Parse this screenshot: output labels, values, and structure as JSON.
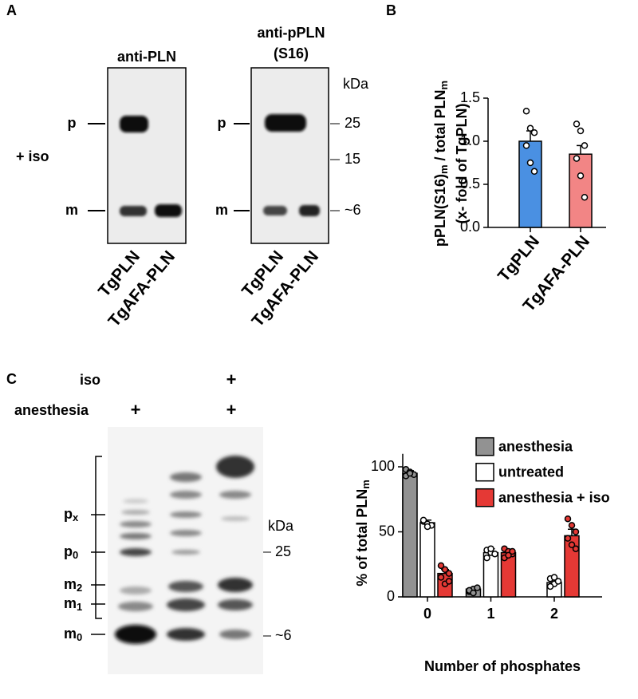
{
  "panel_labels": [
    "A",
    "B",
    "C"
  ],
  "blot_a": {
    "titles": [
      "anti-PLN",
      "anti-pPLN",
      "(S16)"
    ],
    "condition": "+ iso",
    "band_labels": [
      "p",
      "m"
    ],
    "kda": "kDa",
    "markers": [
      "25",
      "15",
      "~6"
    ],
    "lanes": [
      "TgPLN",
      "TgAFA-PLN"
    ]
  },
  "blot_c": {
    "rows": [
      "iso",
      "anesthesia"
    ],
    "plus": "+",
    "band_labels": [
      [
        "p",
        "x"
      ],
      [
        "p",
        "0"
      ],
      [
        "m",
        "2"
      ],
      [
        "m",
        "1"
      ],
      [
        "m",
        "0"
      ]
    ],
    "kda": "kDa",
    "markers": [
      "25",
      "~6"
    ]
  },
  "chart_data": [
    {
      "type": "bar",
      "y_label": [
        "pPLN(S16)",
        "m",
        " / total PLN",
        "m",
        "(x- fold of TgPLN)"
      ],
      "categories": [
        "TgPLN",
        "TgAFA-PLN"
      ],
      "values": [
        1.0,
        0.85
      ],
      "errors": [
        0.12,
        0.1
      ],
      "colors": [
        "#4a90e2",
        "#f28585"
      ],
      "points": [
        [
          1.35,
          1.15,
          1.1,
          0.95,
          0.75,
          0.65
        ],
        [
          1.2,
          1.12,
          0.95,
          0.8,
          0.6,
          0.35
        ]
      ],
      "ylim": [
        0,
        1.5
      ],
      "yticks": [
        {
          "value": 0,
          "label": "0.0"
        },
        {
          "value": 0.5,
          "label": "0.5"
        },
        {
          "value": 1,
          "label": "1.0"
        },
        {
          "value": 1.5,
          "label": "1.5"
        }
      ]
    },
    {
      "type": "bar",
      "x_label": "Number of phosphates",
      "y_label": [
        "% of total PLN",
        "m"
      ],
      "categories": [
        "0",
        "1",
        "2"
      ],
      "legend": "upper right",
      "series": [
        {
          "name": "anesthesia",
          "color": "#929292",
          "values": [
            95,
            6,
            null
          ],
          "errors": [
            2,
            1,
            null
          ],
          "points": [
            [
              98,
              96,
              94,
              93,
              95
            ],
            [
              4,
              6,
              7,
              5,
              3
            ],
            []
          ]
        },
        {
          "name": "untreated",
          "color": "#ffffff",
          "values": [
            57,
            34,
            11
          ],
          "errors": [
            2,
            3,
            3
          ],
          "points": [
            [
              58,
              56,
              55,
              59,
              54
            ],
            [
              36,
              34,
              33,
              30,
              37
            ],
            [
              14,
              10,
              12,
              8,
              15
            ]
          ]
        },
        {
          "name": "anesthesia + iso",
          "color": "#e53935",
          "values": [
            18,
            34,
            47
          ],
          "errors": [
            3,
            2,
            5
          ],
          "points": [
            [
              24,
              21,
              18,
              15,
              10,
              12
            ],
            [
              37,
              35,
              33,
              30,
              32,
              35
            ],
            [
              60,
              55,
              50,
              45,
              40,
              37
            ]
          ]
        }
      ],
      "ylim": [
        0,
        110
      ],
      "yticks": [
        0,
        50,
        100
      ]
    }
  ]
}
